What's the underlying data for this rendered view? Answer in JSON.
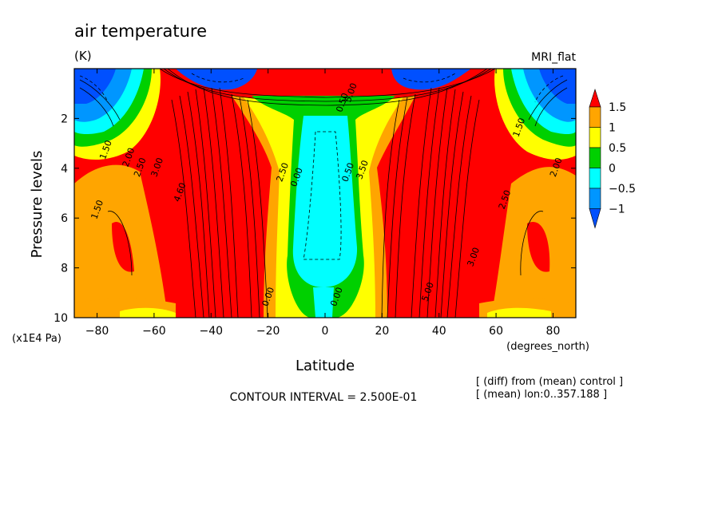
{
  "chart_data": {
    "type": "contour",
    "title": "air temperature",
    "units": "(K)",
    "model_label": "MRI_flat",
    "xlabel": "Latitude",
    "x_units": "(degrees_north)",
    "ylabel": "Pressure levels",
    "y_units": "(x1E4 Pa)",
    "xlim": [
      -88,
      88
    ],
    "ylim": [
      0,
      10
    ],
    "y_inverted": true,
    "x_ticks": [
      -80,
      -60,
      -40,
      -20,
      0,
      20,
      40,
      60,
      80
    ],
    "y_ticks": [
      2,
      4,
      6,
      8,
      10
    ],
    "contour_interval_text": "CONTOUR INTERVAL = 2.500E-01",
    "notes": [
      "[ (diff) from (mean) control ]",
      "[ (mean) lon:0..357.188 ]"
    ],
    "colorbar": {
      "labels": [
        "1.5",
        "1",
        "0.5",
        "0",
        "−0.5",
        "−1"
      ],
      "colors": [
        "#ff0000",
        "#ffa500",
        "#ffff00",
        "#00d000",
        "#00ffff",
        "#0096ff",
        "#0050ff"
      ]
    },
    "contour_labels": [
      {
        "text": "1.50",
        "lat": -76,
        "p": 3.3
      },
      {
        "text": "2.00",
        "lat": -68,
        "p": 3.6
      },
      {
        "text": "2.50",
        "lat": -64,
        "p": 4.0
      },
      {
        "text": "3.00",
        "lat": -58,
        "p": 4.0
      },
      {
        "text": "1.50",
        "lat": -79,
        "p": 5.7
      },
      {
        "text": "4.60",
        "lat": -50,
        "p": 5.0
      },
      {
        "text": "0.00",
        "lat": -19,
        "p": 9.2
      },
      {
        "text": "2.50",
        "lat": -14,
        "p": 4.2
      },
      {
        "text": "0.00",
        "lat": -9,
        "p": 4.4
      },
      {
        "text": "0.50",
        "lat": 9,
        "p": 4.2
      },
      {
        "text": "0.00",
        "lat": 5,
        "p": 9.2
      },
      {
        "text": "3.50",
        "lat": 14,
        "p": 4.1
      },
      {
        "text": "5.00",
        "lat": 37,
        "p": 9.0
      },
      {
        "text": "2.50",
        "lat": 64,
        "p": 5.3
      },
      {
        "text": "2.00",
        "lat": 82,
        "p": 4.0
      },
      {
        "text": "1.50",
        "lat": 69,
        "p": 2.4
      },
      {
        "text": "3.00",
        "lat": 53,
        "p": 7.6
      },
      {
        "text": "0.50",
        "lat": 7,
        "p": 1.4
      },
      {
        "text": "5.00",
        "lat": 10,
        "p": 1.0
      }
    ]
  }
}
